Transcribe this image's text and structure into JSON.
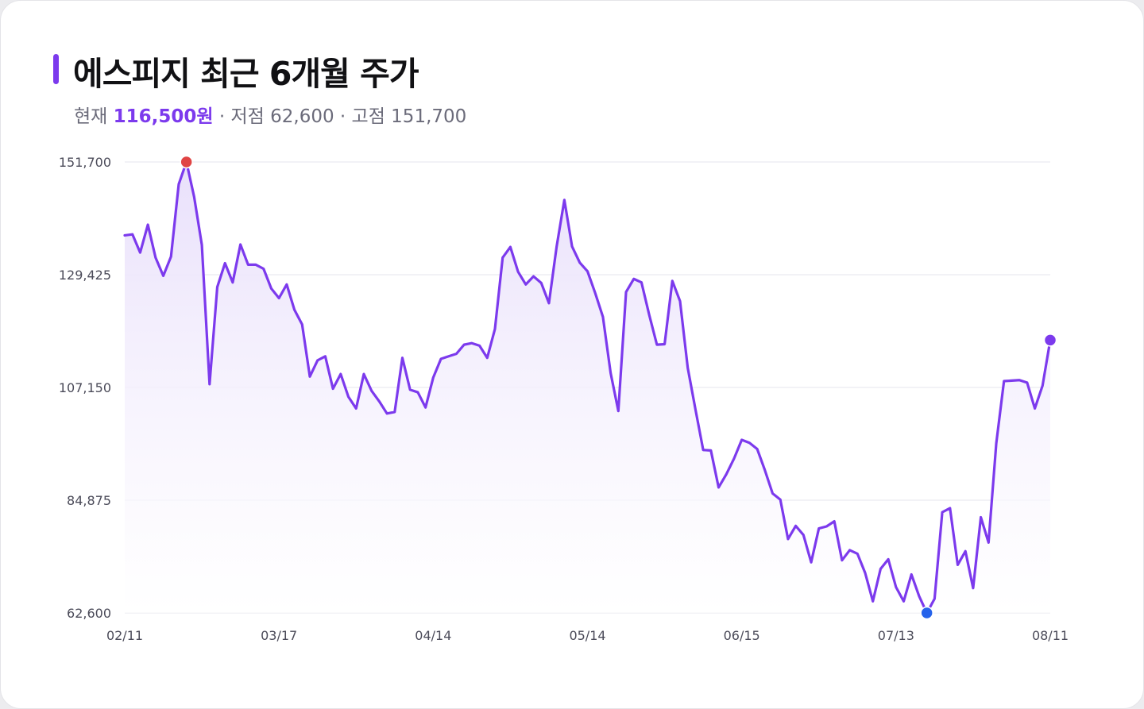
{
  "header": {
    "title": "에스피지 최근 6개월 주가",
    "current_label": "현재",
    "current_value": "116,500원",
    "low_text": "· 저점 62,600",
    "high_text": "· 고점 151,700"
  },
  "colors": {
    "line": "#7c3aed",
    "area_top": "#e9e0fb",
    "high_marker": "#e04444",
    "low_marker": "#2563eb",
    "current_marker": "#7c3aed",
    "grid": "#e6e6ec"
  },
  "chart_data": {
    "type": "line",
    "title": "에스피지 최근 6개월 주가",
    "xlabel": "",
    "ylabel": "",
    "ylim": [
      62600,
      151700
    ],
    "yticks": [
      151700,
      129425,
      107150,
      84875,
      62600
    ],
    "ytick_labels": [
      "151,700",
      "129,425",
      "107,150",
      "84,875",
      "62,600"
    ],
    "xticks": [
      "02/11",
      "03/17",
      "04/14",
      "05/14",
      "06/15",
      "07/13",
      "08/11"
    ],
    "xtick_positions": [
      0,
      20,
      40,
      60,
      80,
      100,
      120
    ],
    "grid": true,
    "fill_area": true,
    "markers": {
      "high": {
        "index": 8,
        "value": 151700
      },
      "low": {
        "index": 104,
        "value": 62600
      },
      "current": {
        "index": 120,
        "value": 116500
      }
    },
    "series": [
      {
        "values": [
          137200,
          137400,
          133800,
          139300,
          132800,
          129200,
          133000,
          147300,
          151700,
          144800,
          135300,
          107800,
          127000,
          131700,
          127900,
          135400,
          131400,
          131400,
          130600,
          126700,
          124800,
          127500,
          122500,
          119600,
          109300,
          112500,
          113300,
          106900,
          109800,
          105300,
          103000,
          109800,
          106500,
          104400,
          102000,
          102300,
          113000,
          106700,
          106200,
          103200,
          109100,
          112800,
          113300,
          113800,
          115600,
          115900,
          115400,
          113000,
          118700,
          132800,
          134900,
          130000,
          127500,
          129100,
          127800,
          123800,
          135000,
          144200,
          135000,
          131800,
          130100,
          125800,
          121100,
          110000,
          102500,
          126000,
          128600,
          127900,
          121500,
          115600,
          115700,
          128200,
          124200,
          111000,
          102800,
          94800,
          94700,
          87400,
          90000,
          93100,
          96800,
          96200,
          95000,
          90800,
          86200,
          85000,
          77200,
          79800,
          78000,
          72600,
          79300,
          79700,
          80700,
          73000,
          75000,
          74300,
          70500,
          64900,
          71300,
          73200,
          67700,
          64900,
          70200,
          65900,
          62600,
          65400,
          82500,
          83300,
          72100,
          74800,
          67500,
          81500,
          76500,
          96100,
          108400,
          108500,
          108600,
          108100,
          103000,
          107500,
          116500
        ]
      }
    ]
  }
}
